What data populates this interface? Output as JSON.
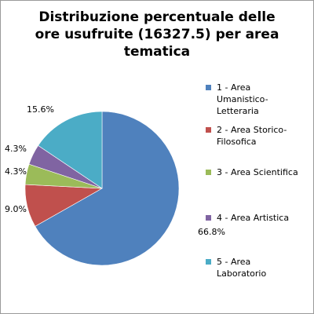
{
  "chart_data": {
    "type": "pie",
    "title_lines": [
      "Distribuzione percentuale delle",
      "ore usufruite (16327.5) per area",
      "tematica"
    ],
    "categories": [
      "1 - Area Umanistico-Letteraria",
      "2 - Area Storico-Filosofica",
      "3 - Area Scientifica",
      "4 - Area Artistica",
      "5 - Area Laboratorio"
    ],
    "legend_lines": [
      [
        "1 - Area",
        "Umanistico-",
        "Letteraria"
      ],
      [
        "2 - Area Storico-",
        "Filosofica"
      ],
      [
        "3 - Area Scientifica"
      ],
      [
        "4 - Area Artistica"
      ],
      [
        "5 - Area",
        "Laboratorio"
      ]
    ],
    "values": [
      66.8,
      9.0,
      4.3,
      4.3,
      15.6
    ],
    "data_labels": [
      "66.8%",
      "9.0%",
      "4.3%",
      "4.3%",
      "15.6%"
    ],
    "colors": [
      "#4f81bd",
      "#c0504d",
      "#9bbb59",
      "#8064a2",
      "#4bacc6"
    ],
    "legend_position": "right"
  }
}
